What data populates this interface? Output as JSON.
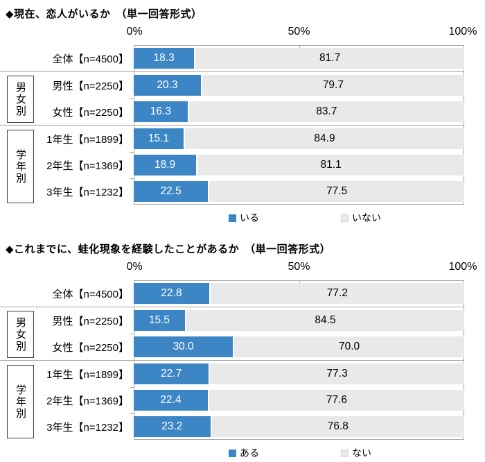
{
  "colors": {
    "series_yes_blue": "#3d86c6",
    "series_no_gray": "#e9e9e9",
    "frame_gray": "#a6a6a6",
    "value_text_on_blue": "#ffffff",
    "value_text_on_gray": "#000000"
  },
  "chart_data": [
    {
      "type": "bar",
      "orientation": "horizontal",
      "stacked": true,
      "title": "◆現在、恋人がいるか　（単一回答形式）",
      "x_ticks": [
        "0%",
        "50%",
        "100%"
      ],
      "xlim": [
        0,
        100
      ],
      "grid": false,
      "legend_position": "bottom",
      "categories": [
        "全体【n=4500】",
        "男性【n=2250】",
        "女性【n=2250】",
        "1年生【n=1899】",
        "2年生【n=1369】",
        "3年生【n=1232】"
      ],
      "group_labels": [
        "男女別",
        "学年別"
      ],
      "series": [
        {
          "name": "いる",
          "color": "#3d86c6",
          "values": [
            18.3,
            20.3,
            16.3,
            15.1,
            18.9,
            22.5
          ],
          "labels": [
            "18.3",
            "20.3",
            "16.3",
            "15.1",
            "18.9",
            "22.5"
          ]
        },
        {
          "name": "いない",
          "color": "#e9e9e9",
          "values": [
            81.7,
            79.7,
            83.7,
            84.9,
            81.1,
            77.5
          ],
          "labels": [
            "81.7",
            "79.7",
            "83.7",
            "84.9",
            "81.1",
            "77.5"
          ]
        }
      ]
    },
    {
      "type": "bar",
      "orientation": "horizontal",
      "stacked": true,
      "title": "◆これまでに、蛙化現象を経験したことがあるか　（単一回答形式）",
      "x_ticks": [
        "0%",
        "50%",
        "100%"
      ],
      "xlim": [
        0,
        100
      ],
      "grid": false,
      "legend_position": "bottom",
      "categories": [
        "全体【n=4500】",
        "男性【n=2250】",
        "女性【n=2250】",
        "1年生【n=1899】",
        "2年生【n=1369】",
        "3年生【n=1232】"
      ],
      "group_labels": [
        "男女別",
        "学年別"
      ],
      "series": [
        {
          "name": "ある",
          "color": "#3d86c6",
          "values": [
            22.8,
            15.5,
            30.0,
            22.7,
            22.4,
            23.2
          ],
          "labels": [
            "22.8",
            "15.5",
            "30.0",
            "22.7",
            "22.4",
            "23.2"
          ]
        },
        {
          "name": "ない",
          "color": "#e9e9e9",
          "values": [
            77.2,
            84.5,
            70.0,
            77.3,
            77.6,
            76.8
          ],
          "labels": [
            "77.2",
            "84.5",
            "70.0",
            "77.3",
            "77.6",
            "76.8"
          ]
        }
      ]
    }
  ]
}
